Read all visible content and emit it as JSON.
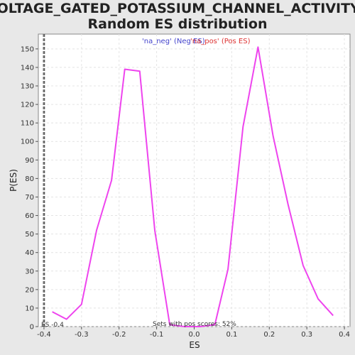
{
  "chart_data": {
    "type": "line",
    "title_line1": "VOLTAGE_GATED_POTASSIUM_CHANNEL_ACTIVITY:",
    "title_line2": "Random ES distribution",
    "xlabel": "ES",
    "ylabel": "P(ES)",
    "xlim": [
      -0.415,
      0.415
    ],
    "ylim": [
      0,
      158
    ],
    "xticks": [
      -0.4,
      -0.3,
      -0.2,
      -0.1,
      0.0,
      0.1,
      0.2,
      0.3,
      0.4
    ],
    "xtick_labels": [
      "-0.4",
      "-0.3",
      "-0.2",
      "-0.1",
      "0.0",
      "0.1",
      "0.2",
      "0.3",
      "0.4"
    ],
    "yticks": [
      0,
      10,
      20,
      30,
      40,
      50,
      60,
      70,
      80,
      90,
      100,
      110,
      120,
      130,
      140,
      150
    ],
    "grid": true,
    "legend": {
      "placement": "top-center",
      "entries": [
        {
          "label": "'na_neg' (Neg ES)",
          "color": "#4444cc"
        },
        {
          "label": "'na_pos' (Pos ES)",
          "color": "#dd3333"
        }
      ]
    },
    "series": [
      {
        "color": "#ee44ee",
        "x": [
          -0.378,
          -0.34,
          -0.3,
          -0.26,
          -0.22,
          -0.185,
          -0.145,
          -0.105,
          -0.065,
          -0.025,
          0.015,
          0.055,
          0.09,
          0.13,
          0.17,
          0.21,
          0.25,
          0.29,
          0.33,
          0.37
        ],
        "y": [
          8,
          4,
          12,
          52,
          79,
          139,
          138,
          52,
          1,
          0,
          0,
          1,
          31,
          108,
          151,
          103,
          66,
          33,
          15,
          6
        ]
      }
    ],
    "vline": {
      "x": -0.4,
      "label": "ES -0.4",
      "style": "dashed",
      "color": "#333333"
    },
    "annotation": "Sets with pos scores: 52%"
  }
}
